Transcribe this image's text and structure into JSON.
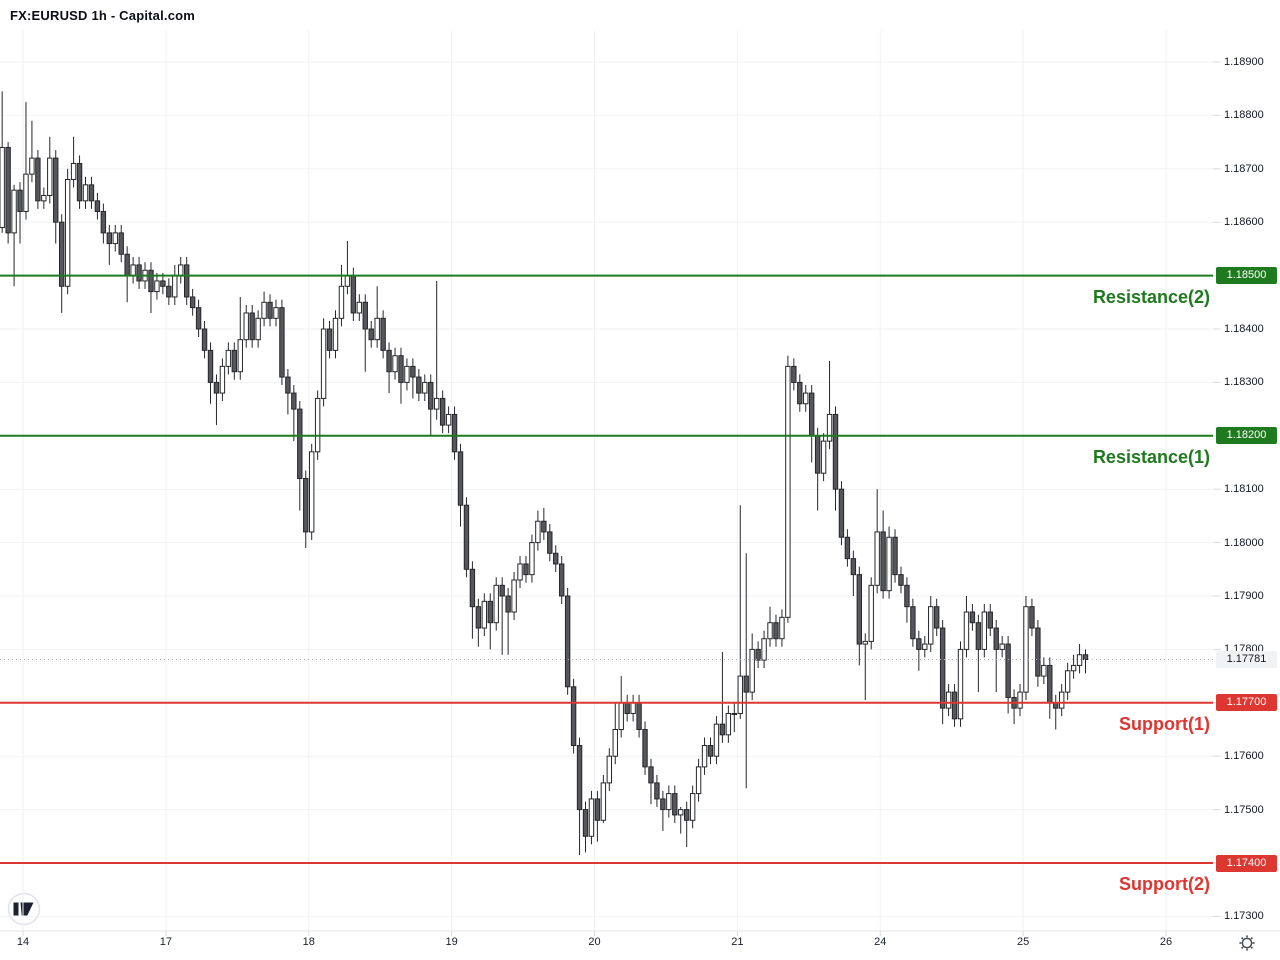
{
  "header": {
    "title": "FX:EURUSD 1h - Capital.com"
  },
  "colors": {
    "up_body": "#ffffff",
    "down_body": "#55575c",
    "candle_border": "#26272b",
    "wick": "#26272b",
    "grid": "#f0f2f6",
    "resistance": "#1f7a1f",
    "support": "#dd3731",
    "last_price_bg": "#f1f2f4",
    "last_price_line": "#b6b9c2",
    "axis_text": "#131722",
    "separator": "#e0e3eb",
    "tick": "#d9dce3",
    "icon_gray": "#4a4e59",
    "logo_ring": "#e0e3eb",
    "logo_glyph": "#1c2030"
  },
  "icons": {
    "logo": "tradingview-logo-icon",
    "settings": "settings-gear-icon"
  },
  "chart_data": {
    "type": "candlestick",
    "symbol": "FX:EURUSD",
    "interval": "1h",
    "provider": "Capital.com",
    "ohlc_format": [
      "open",
      "high",
      "low",
      "close"
    ],
    "y_axis": {
      "labels": [
        "1.18900",
        "1.18800",
        "1.18700",
        "1.18600",
        "1.18500",
        "1.18400",
        "1.18300",
        "1.18200",
        "1.18100",
        "1.18000",
        "1.17900",
        "1.17800",
        "1.17700",
        "1.17600",
        "1.17500",
        "1.17400",
        "1.17300"
      ],
      "min": 1.173,
      "max": 1.189,
      "step": 0.001,
      "grid": true
    },
    "x_axis": {
      "labels": [
        "14",
        "17",
        "18",
        "19",
        "20",
        "21",
        "24",
        "25",
        "26"
      ],
      "grid": true,
      "candles_per_day": 24,
      "first_day_start_index": 4
    },
    "last_price": {
      "label": "1.17781",
      "value": 1.17781
    },
    "levels": [
      {
        "label": "Resistance(2)",
        "badge": "1.18500",
        "price": 1.185,
        "kind": "resistance"
      },
      {
        "label": "Resistance(1)",
        "badge": "1.18200",
        "price": 1.182,
        "kind": "resistance"
      },
      {
        "label": "Support(1)",
        "badge": "1.17700",
        "price": 1.177,
        "kind": "support"
      },
      {
        "label": "Support(2)",
        "badge": "1.17400",
        "price": 1.174,
        "kind": "support"
      }
    ],
    "candles": [
      [
        1.1859,
        1.18845,
        1.1858,
        1.1874
      ],
      [
        1.1874,
        1.1875,
        1.1856,
        1.1858
      ],
      [
        1.1858,
        1.1867,
        1.1848,
        1.1866
      ],
      [
        1.1866,
        1.18675,
        1.1856,
        1.1862
      ],
      [
        1.1862,
        1.18825,
        1.18605,
        1.1869
      ],
      [
        1.1869,
        1.1879,
        1.18675,
        1.1872
      ],
      [
        1.1872,
        1.18735,
        1.18625,
        1.1864
      ],
      [
        1.1864,
        1.18665,
        1.18625,
        1.1865
      ],
      [
        1.1865,
        1.1876,
        1.18635,
        1.1872
      ],
      [
        1.1872,
        1.18735,
        1.1856,
        1.186
      ],
      [
        1.186,
        1.18615,
        1.1843,
        1.1848
      ],
      [
        1.1848,
        1.187,
        1.18465,
        1.1868
      ],
      [
        1.1868,
        1.1876,
        1.18665,
        1.1871
      ],
      [
        1.1871,
        1.18725,
        1.18625,
        1.1864
      ],
      [
        1.1864,
        1.18685,
        1.18625,
        1.1867
      ],
      [
        1.1867,
        1.18685,
        1.18625,
        1.1864
      ],
      [
        1.1864,
        1.18655,
        1.18605,
        1.1862
      ],
      [
        1.1862,
        1.18635,
        1.1856,
        1.1858
      ],
      [
        1.1858,
        1.18595,
        1.1852,
        1.1856
      ],
      [
        1.1856,
        1.18595,
        1.18545,
        1.1858
      ],
      [
        1.1858,
        1.18595,
        1.18525,
        1.1854
      ],
      [
        1.1854,
        1.18555,
        1.1845,
        1.185
      ],
      [
        1.185,
        1.18535,
        1.18485,
        1.1852
      ],
      [
        1.1852,
        1.18535,
        1.18475,
        1.1849
      ],
      [
        1.1849,
        1.18525,
        1.18475,
        1.1851
      ],
      [
        1.1851,
        1.18525,
        1.1843,
        1.1847
      ],
      [
        1.1847,
        1.18505,
        1.18455,
        1.1849
      ],
      [
        1.1849,
        1.18505,
        1.18465,
        1.1848
      ],
      [
        1.1848,
        1.18495,
        1.18445,
        1.1846
      ],
      [
        1.1846,
        1.1852,
        1.18445,
        1.185
      ],
      [
        1.185,
        1.18535,
        1.18485,
        1.1852
      ],
      [
        1.1852,
        1.18535,
        1.18445,
        1.1846
      ],
      [
        1.1846,
        1.18475,
        1.18425,
        1.1844
      ],
      [
        1.1844,
        1.18455,
        1.18385,
        1.184
      ],
      [
        1.184,
        1.18415,
        1.18345,
        1.1836
      ],
      [
        1.1836,
        1.18375,
        1.1826,
        1.183
      ],
      [
        1.183,
        1.18315,
        1.1822,
        1.1828
      ],
      [
        1.1828,
        1.18345,
        1.18265,
        1.1833
      ],
      [
        1.1833,
        1.18375,
        1.18315,
        1.1836
      ],
      [
        1.1836,
        1.18375,
        1.18305,
        1.1832
      ],
      [
        1.1832,
        1.1846,
        1.18305,
        1.1838
      ],
      [
        1.1838,
        1.18445,
        1.18365,
        1.1843
      ],
      [
        1.1843,
        1.18445,
        1.18365,
        1.1838
      ],
      [
        1.1838,
        1.18435,
        1.18365,
        1.1842
      ],
      [
        1.1842,
        1.1847,
        1.18405,
        1.1845
      ],
      [
        1.1845,
        1.18465,
        1.18405,
        1.1842
      ],
      [
        1.1842,
        1.18455,
        1.18405,
        1.1844
      ],
      [
        1.1844,
        1.18455,
        1.18295,
        1.1831
      ],
      [
        1.1831,
        1.18325,
        1.1824,
        1.1828
      ],
      [
        1.1828,
        1.18295,
        1.1819,
        1.1825
      ],
      [
        1.1825,
        1.18265,
        1.1806,
        1.1812
      ],
      [
        1.1812,
        1.18135,
        1.1799,
        1.1802
      ],
      [
        1.1802,
        1.18185,
        1.18005,
        1.1817
      ],
      [
        1.1817,
        1.18285,
        1.18155,
        1.1827
      ],
      [
        1.1827,
        1.1842,
        1.18255,
        1.184
      ],
      [
        1.184,
        1.18415,
        1.18345,
        1.1836
      ],
      [
        1.1836,
        1.18435,
        1.18345,
        1.1842
      ],
      [
        1.1842,
        1.1852,
        1.18405,
        1.1848
      ],
      [
        1.1848,
        1.18565,
        1.18465,
        1.185
      ],
      [
        1.185,
        1.18515,
        1.18415,
        1.1843
      ],
      [
        1.1843,
        1.18465,
        1.18415,
        1.1845
      ],
      [
        1.1845,
        1.18465,
        1.1832,
        1.184
      ],
      [
        1.184,
        1.18415,
        1.18365,
        1.1838
      ],
      [
        1.1838,
        1.1848,
        1.18365,
        1.1842
      ],
      [
        1.1842,
        1.18435,
        1.18345,
        1.1836
      ],
      [
        1.1836,
        1.18375,
        1.1828,
        1.1832
      ],
      [
        1.1832,
        1.18365,
        1.18305,
        1.1835
      ],
      [
        1.1835,
        1.18365,
        1.1826,
        1.183
      ],
      [
        1.183,
        1.18345,
        1.18285,
        1.1833
      ],
      [
        1.1833,
        1.18345,
        1.1827,
        1.1831
      ],
      [
        1.1831,
        1.18325,
        1.18265,
        1.1828
      ],
      [
        1.1828,
        1.18315,
        1.18265,
        1.183
      ],
      [
        1.183,
        1.18315,
        1.182,
        1.1825
      ],
      [
        1.1825,
        1.1849,
        1.1823,
        1.1827
      ],
      [
        1.1827,
        1.18285,
        1.18205,
        1.1822
      ],
      [
        1.1822,
        1.18255,
        1.18205,
        1.1824
      ],
      [
        1.1824,
        1.18255,
        1.18155,
        1.1817
      ],
      [
        1.1817,
        1.18185,
        1.1803,
        1.1807
      ],
      [
        1.1807,
        1.18085,
        1.17935,
        1.1795
      ],
      [
        1.1795,
        1.17965,
        1.1782,
        1.1788
      ],
      [
        1.1788,
        1.17895,
        1.17805,
        1.1784
      ],
      [
        1.1784,
        1.17905,
        1.17825,
        1.1789
      ],
      [
        1.1789,
        1.17905,
        1.178,
        1.1785
      ],
      [
        1.1785,
        1.17935,
        1.17835,
        1.1792
      ],
      [
        1.1792,
        1.17935,
        1.1779,
        1.179
      ],
      [
        1.179,
        1.17915,
        1.1779,
        1.1787
      ],
      [
        1.1787,
        1.17945,
        1.17855,
        1.1793
      ],
      [
        1.1793,
        1.17975,
        1.17915,
        1.1796
      ],
      [
        1.1796,
        1.17975,
        1.17925,
        1.1794
      ],
      [
        1.1794,
        1.18015,
        1.17925,
        1.18
      ],
      [
        1.18,
        1.1806,
        1.17985,
        1.1804
      ],
      [
        1.1804,
        1.18065,
        1.18005,
        1.1802
      ],
      [
        1.1802,
        1.18035,
        1.17965,
        1.1798
      ],
      [
        1.1798,
        1.17995,
        1.17945,
        1.1796
      ],
      [
        1.1796,
        1.17975,
        1.17885,
        1.179
      ],
      [
        1.179,
        1.17915,
        1.17715,
        1.1773
      ],
      [
        1.1773,
        1.17745,
        1.17605,
        1.1762
      ],
      [
        1.1762,
        1.17635,
        1.17415,
        1.175
      ],
      [
        1.175,
        1.17515,
        1.1742,
        1.1745
      ],
      [
        1.1745,
        1.17535,
        1.17435,
        1.1752
      ],
      [
        1.1752,
        1.17535,
        1.1744,
        1.1748
      ],
      [
        1.1748,
        1.17565,
        1.17475,
        1.1755
      ],
      [
        1.1755,
        1.17615,
        1.17535,
        1.176
      ],
      [
        1.176,
        1.177,
        1.17585,
        1.1765
      ],
      [
        1.1765,
        1.1775,
        1.17635,
        1.177
      ],
      [
        1.177,
        1.17715,
        1.17665,
        1.1768
      ],
      [
        1.1768,
        1.17715,
        1.17665,
        1.177
      ],
      [
        1.177,
        1.17715,
        1.17635,
        1.1765
      ],
      [
        1.1765,
        1.17665,
        1.17565,
        1.1758
      ],
      [
        1.1758,
        1.17595,
        1.1751,
        1.1755
      ],
      [
        1.1755,
        1.17565,
        1.17505,
        1.1752
      ],
      [
        1.1752,
        1.17535,
        1.1746,
        1.175
      ],
      [
        1.175,
        1.17545,
        1.17485,
        1.1753
      ],
      [
        1.1753,
        1.17545,
        1.17475,
        1.1749
      ],
      [
        1.1749,
        1.17505,
        1.17455,
        1.175
      ],
      [
        1.175,
        1.17515,
        1.1743,
        1.1748
      ],
      [
        1.1748,
        1.17545,
        1.17465,
        1.1753
      ],
      [
        1.1753,
        1.17595,
        1.17515,
        1.1758
      ],
      [
        1.1758,
        1.17635,
        1.17565,
        1.1762
      ],
      [
        1.1762,
        1.17635,
        1.17585,
        1.176
      ],
      [
        1.176,
        1.17675,
        1.17585,
        1.1766
      ],
      [
        1.1766,
        1.17795,
        1.17625,
        1.1764
      ],
      [
        1.1764,
        1.17695,
        1.17625,
        1.1768
      ],
      [
        1.1768,
        1.177,
        1.17645,
        1.1768
      ],
      [
        1.1768,
        1.1807,
        1.1767,
        1.1775
      ],
      [
        1.1775,
        1.1798,
        1.1754,
        1.1772
      ],
      [
        1.1772,
        1.1783,
        1.17705,
        1.178
      ],
      [
        1.178,
        1.17815,
        1.17765,
        1.1778
      ],
      [
        1.1778,
        1.17835,
        1.17765,
        1.1782
      ],
      [
        1.1782,
        1.1788,
        1.17805,
        1.1785
      ],
      [
        1.1785,
        1.17865,
        1.17805,
        1.1782
      ],
      [
        1.1782,
        1.17875,
        1.17805,
        1.1786
      ],
      [
        1.1786,
        1.1835,
        1.1785,
        1.1833
      ],
      [
        1.1833,
        1.18345,
        1.18285,
        1.183
      ],
      [
        1.183,
        1.18315,
        1.18245,
        1.1826
      ],
      [
        1.1826,
        1.18295,
        1.18245,
        1.1828
      ],
      [
        1.1828,
        1.18295,
        1.1815,
        1.182
      ],
      [
        1.182,
        1.18215,
        1.1806,
        1.1813
      ],
      [
        1.1813,
        1.18205,
        1.18115,
        1.1819
      ],
      [
        1.1819,
        1.1834,
        1.18175,
        1.1824
      ],
      [
        1.1824,
        1.18255,
        1.1806,
        1.181
      ],
      [
        1.181,
        1.18115,
        1.17995,
        1.1801
      ],
      [
        1.1801,
        1.18025,
        1.17955,
        1.1797
      ],
      [
        1.1797,
        1.17985,
        1.179,
        1.1794
      ],
      [
        1.1794,
        1.17955,
        1.1777,
        1.1781
      ],
      [
        1.1781,
        1.1783,
        1.17705,
        1.17815
      ],
      [
        1.17815,
        1.17935,
        1.178,
        1.1792
      ],
      [
        1.1792,
        1.181,
        1.17905,
        1.1802
      ],
      [
        1.1802,
        1.1806,
        1.17895,
        1.1791
      ],
      [
        1.1791,
        1.1803,
        1.17895,
        1.1801
      ],
      [
        1.1801,
        1.18025,
        1.17925,
        1.1794
      ],
      [
        1.1794,
        1.17955,
        1.17905,
        1.1792
      ],
      [
        1.1792,
        1.17935,
        1.1785,
        1.1788
      ],
      [
        1.1788,
        1.17895,
        1.17805,
        1.1782
      ],
      [
        1.1782,
        1.17835,
        1.1776,
        1.178
      ],
      [
        1.178,
        1.17825,
        1.17785,
        1.1781
      ],
      [
        1.1781,
        1.179,
        1.17795,
        1.1788
      ],
      [
        1.1788,
        1.17895,
        1.17825,
        1.1784
      ],
      [
        1.1784,
        1.17855,
        1.1766,
        1.1769
      ],
      [
        1.1769,
        1.17735,
        1.17675,
        1.1772
      ],
      [
        1.1772,
        1.17735,
        1.17655,
        1.1767
      ],
      [
        1.1767,
        1.17815,
        1.17655,
        1.178
      ],
      [
        1.178,
        1.179,
        1.17785,
        1.1787
      ],
      [
        1.1787,
        1.17885,
        1.17835,
        1.1785
      ],
      [
        1.1785,
        1.17865,
        1.1772,
        1.178
      ],
      [
        1.178,
        1.17885,
        1.17785,
        1.1787
      ],
      [
        1.1787,
        1.17885,
        1.17825,
        1.1784
      ],
      [
        1.1784,
        1.17855,
        1.1772,
        1.178
      ],
      [
        1.178,
        1.17825,
        1.17785,
        1.1781
      ],
      [
        1.1781,
        1.17825,
        1.1768,
        1.1771
      ],
      [
        1.1771,
        1.17725,
        1.1766,
        1.1769
      ],
      [
        1.1769,
        1.17735,
        1.17675,
        1.1772
      ],
      [
        1.1772,
        1.179,
        1.17705,
        1.1788
      ],
      [
        1.1788,
        1.17895,
        1.17825,
        1.1784
      ],
      [
        1.1784,
        1.17855,
        1.1773,
        1.1775
      ],
      [
        1.1775,
        1.17785,
        1.17735,
        1.1777
      ],
      [
        1.1777,
        1.17785,
        1.1767,
        1.177
      ],
      [
        1.177,
        1.17715,
        1.1765,
        1.1769
      ],
      [
        1.1769,
        1.17735,
        1.17675,
        1.1772
      ],
      [
        1.1772,
        1.17775,
        1.17705,
        1.1776
      ],
      [
        1.1776,
        1.1779,
        1.17745,
        1.1777
      ],
      [
        1.1777,
        1.1781,
        1.17755,
        1.1779
      ],
      [
        1.1779,
        1.178,
        1.17755,
        1.17781
      ]
    ]
  }
}
